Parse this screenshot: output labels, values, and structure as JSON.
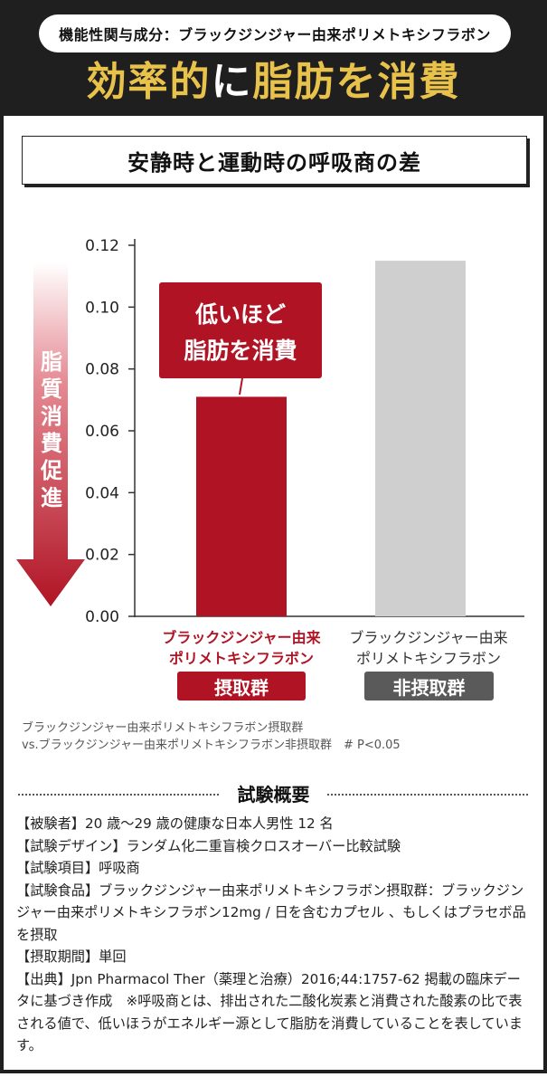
{
  "header": {
    "ingredient_label": "機能性関与成分：ブラックジンジャー由来ポリメトキシフラボン",
    "title_part1": "効率的",
    "title_part2": "に",
    "title_part3": "脂肪を消費",
    "accent_color": "#e8c24a",
    "background_color": "#1f1f1f"
  },
  "chart_section": {
    "subtitle": "安静時と運動時の呼吸商の差",
    "arrow_label": "脂質消費促進",
    "callout_line1": "低いほど",
    "callout_line2": "脂肪を消費",
    "group1_name_line1": "ブラックジンジャー由来",
    "group1_name_line2": "ポリメトキシフラボン",
    "group1_badge": "摂取群",
    "group2_name_line1": "ブラックジンジャー由来",
    "group2_name_line2": "ポリメトキシフラボン",
    "group2_badge": "非摂取群",
    "footnote_line1": "ブラックジンジャー由来ポリメトキシフラボン摂取群",
    "footnote_line2": "vs.ブラックジンジャー由来ポリメトキシフラボン非摂取群　# P<0.05"
  },
  "chart_data": {
    "type": "bar",
    "categories": [
      "ブラックジンジャー由来ポリメトキシフラボン摂取群",
      "ブラックジンジャー由来ポリメトキシフラボン非摂取群"
    ],
    "values": [
      0.071,
      0.115
    ],
    "colors": [
      "#b01424",
      "#cfcfcf"
    ],
    "ylim": [
      0,
      0.12
    ],
    "yticks": [
      "0.00",
      "0.02",
      "0.04",
      "0.06",
      "0.08",
      "0.10",
      "0.12"
    ],
    "grid": false
  },
  "trial": {
    "title": "試験概要",
    "lines": [
      "【被験者】20 歳〜29 歳の健康な日本人男性 12 名",
      "【試験デザイン】ランダム化二重盲検クロスオーバー比較試験",
      "【試験項目】呼吸商",
      "【試験食品】ブラックジンジャー由来ポリメトキシフラボン摂取群：ブラックジンジャー由来ポリメトキシフラボン12mg / 日を含むカプセル 、もしくはプラセボ品を摂取",
      "【摂取期間】単回",
      "【出典】Jpn Pharmacol Ther（薬理と治療）2016;44:1757-62 掲載の臨床データに基づき作成　※呼吸商とは、排出された二酸化炭素と消費された酸素の比で表される値で、低いほうがエネルギー源として脂肪を消費していることを表しています。"
    ]
  }
}
